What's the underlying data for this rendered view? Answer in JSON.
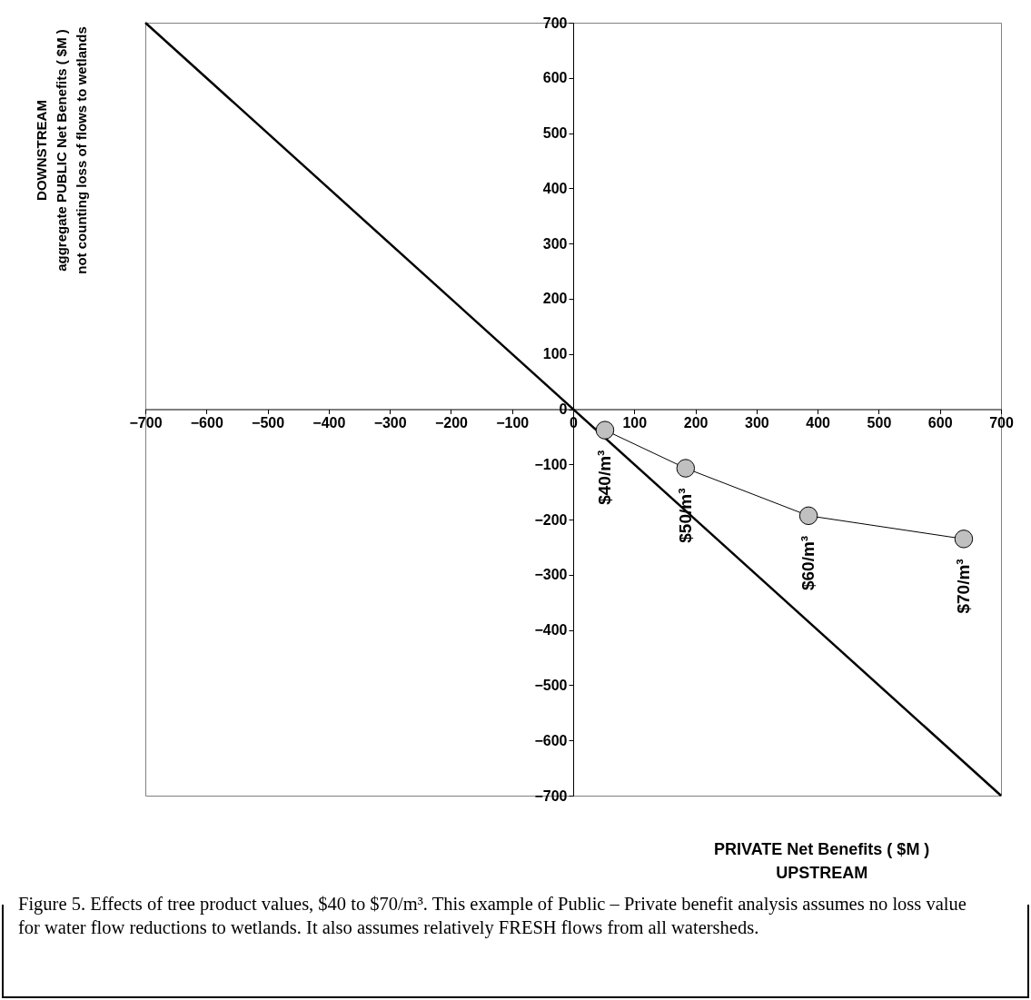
{
  "chart_data": {
    "type": "line",
    "xlabel": [
      "PRIVATE Net Benefits ( $M )",
      "UPSTREAM"
    ],
    "ylabel": [
      "DOWNSTREAM",
      "aggregate PUBLIC Net Benefits ( $M )",
      "not counting loss of flows to wetlands"
    ],
    "xlim": [
      -700,
      700
    ],
    "ylim": [
      -700,
      700
    ],
    "xticks": [
      -700,
      -600,
      -500,
      -400,
      -300,
      -200,
      -100,
      0,
      100,
      200,
      300,
      400,
      500,
      600,
      700
    ],
    "yticks": [
      -700,
      -600,
      -500,
      -400,
      -300,
      -200,
      -100,
      0,
      100,
      200,
      300,
      400,
      500,
      600,
      700
    ],
    "grid": false,
    "series": [
      {
        "color": "#000000",
        "marker": "none",
        "x": [
          -700,
          700
        ],
        "values": [
          700,
          -700
        ]
      },
      {
        "color": "#c0c0c0",
        "marker": "circle",
        "x": [
          52,
          184,
          385,
          639
        ],
        "values": [
          -38,
          -107,
          -193,
          -235
        ]
      }
    ],
    "annotations": [
      {
        "text": "$40/m³",
        "x": 52,
        "y": -38
      },
      {
        "text": "$50/m³",
        "x": 184,
        "y": -107
      },
      {
        "text": "$60/m³",
        "x": 385,
        "y": -193
      },
      {
        "text": "$70/m³",
        "x": 639,
        "y": -235
      },
      "Figure 5.  Effects of tree product values, $40 to $70/m³. This example of Public – Private benefit analysis assumes no loss value for water flow reductions to wetlands. It also assumes relatively FRESH flows from all watersheds."
    ]
  }
}
